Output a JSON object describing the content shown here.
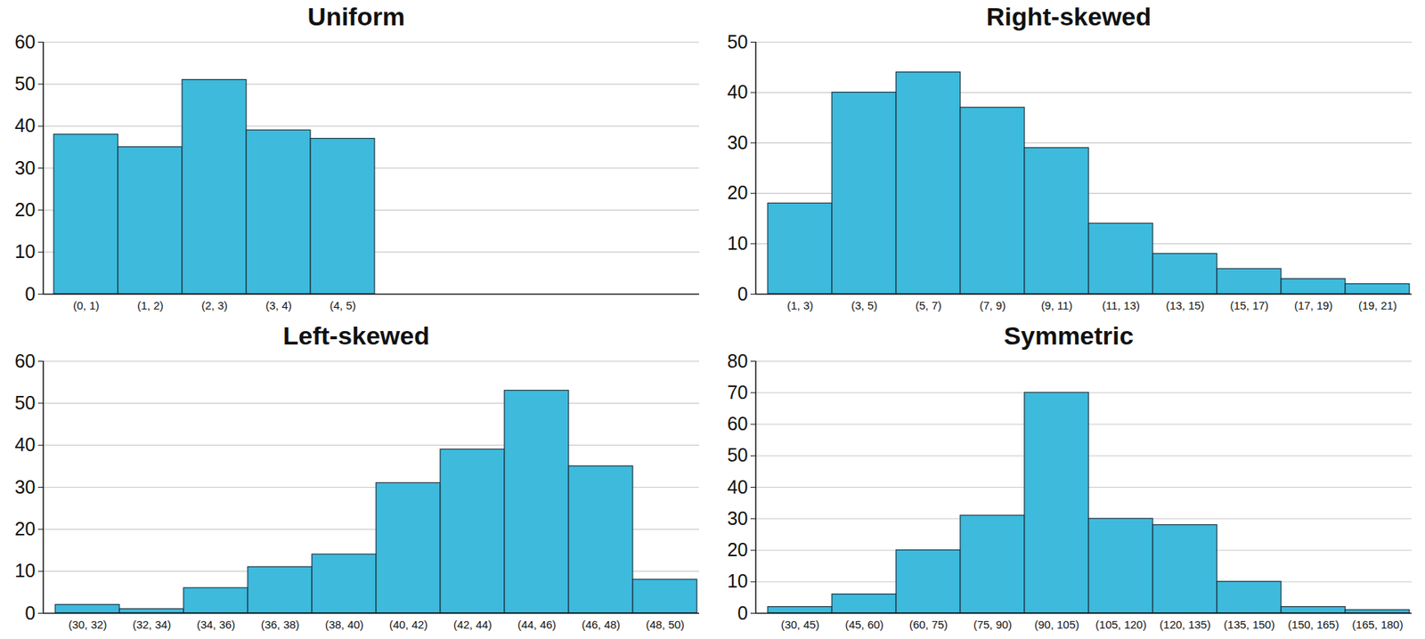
{
  "chart_data": [
    {
      "type": "bar",
      "title": "Uniform",
      "categories": [
        "(0, 1)",
        "(1, 2)",
        "(2, 3)",
        "(3, 4)",
        "(4, 5)"
      ],
      "values": [
        38,
        35,
        51,
        39,
        37
      ],
      "color": "#3dbadc",
      "ylim": [
        0,
        60
      ],
      "yticks": [
        0,
        10,
        20,
        30,
        40,
        50,
        60
      ],
      "grid": true
    },
    {
      "type": "bar",
      "title": "Right-skewed",
      "categories": [
        "(1, 3)",
        "(3, 5)",
        "(5, 7)",
        "(7, 9)",
        "(9, 11)",
        "(11, 13)",
        "(13, 15)",
        "(15, 17)",
        "(17, 19)",
        "(19, 21)"
      ],
      "values": [
        18,
        40,
        44,
        37,
        29,
        14,
        8,
        5,
        3,
        2
      ],
      "color": "#3dbadc",
      "ylim": [
        0,
        50
      ],
      "yticks": [
        0,
        10,
        20,
        30,
        40,
        50
      ],
      "grid": true
    },
    {
      "type": "bar",
      "title": "Left-skewed",
      "categories": [
        "(30, 32)",
        "(32, 34)",
        "(34, 36)",
        "(36, 38)",
        "(38, 40)",
        "(40, 42)",
        "(42, 44)",
        "(44, 46)",
        "(46, 48)",
        "(48, 50)"
      ],
      "values": [
        2,
        1,
        6,
        11,
        14,
        31,
        39,
        53,
        35,
        8
      ],
      "color": "#3dbadc",
      "ylim": [
        0,
        60
      ],
      "yticks": [
        0,
        10,
        20,
        30,
        40,
        50,
        60
      ],
      "grid": true
    },
    {
      "type": "bar",
      "title": "Symmetric",
      "categories": [
        "(30, 45)",
        "(45, 60)",
        "(60, 75)",
        "(75, 90)",
        "(90, 105)",
        "(105, 120)",
        "(120, 135)",
        "(135, 150)",
        "(150, 165)",
        "(165, 180)"
      ],
      "values": [
        2,
        6,
        20,
        31,
        70,
        30,
        28,
        10,
        2,
        1
      ],
      "color": "#3dbadc",
      "ylim": [
        0,
        80
      ],
      "yticks": [
        0,
        10,
        20,
        30,
        40,
        50,
        60,
        70,
        80
      ],
      "grid": true
    }
  ]
}
